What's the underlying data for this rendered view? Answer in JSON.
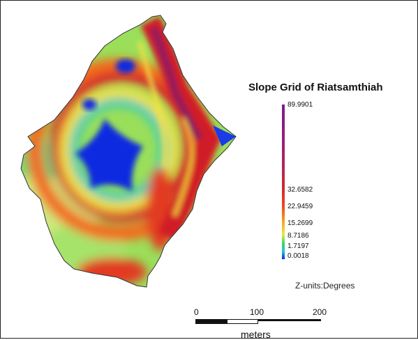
{
  "legend": {
    "title": "Slope Grid of Riatsamthiah",
    "ticks": [
      "89.9901",
      "32.6582",
      "22.9459",
      "15.2699",
      "8.7186",
      "1.7197",
      "0.0018"
    ],
    "z_units": "Z-units:Degrees"
  },
  "scale_bar": {
    "labels": [
      "0",
      "100",
      "200"
    ],
    "unit": "meters"
  },
  "colors": {
    "low": "#0a2be0",
    "mid_low": "#3ad36a",
    "mid": "#f0e040",
    "mid_high": "#ef4a1e",
    "high": "#d01f25",
    "max": "#7a1d8c"
  }
}
